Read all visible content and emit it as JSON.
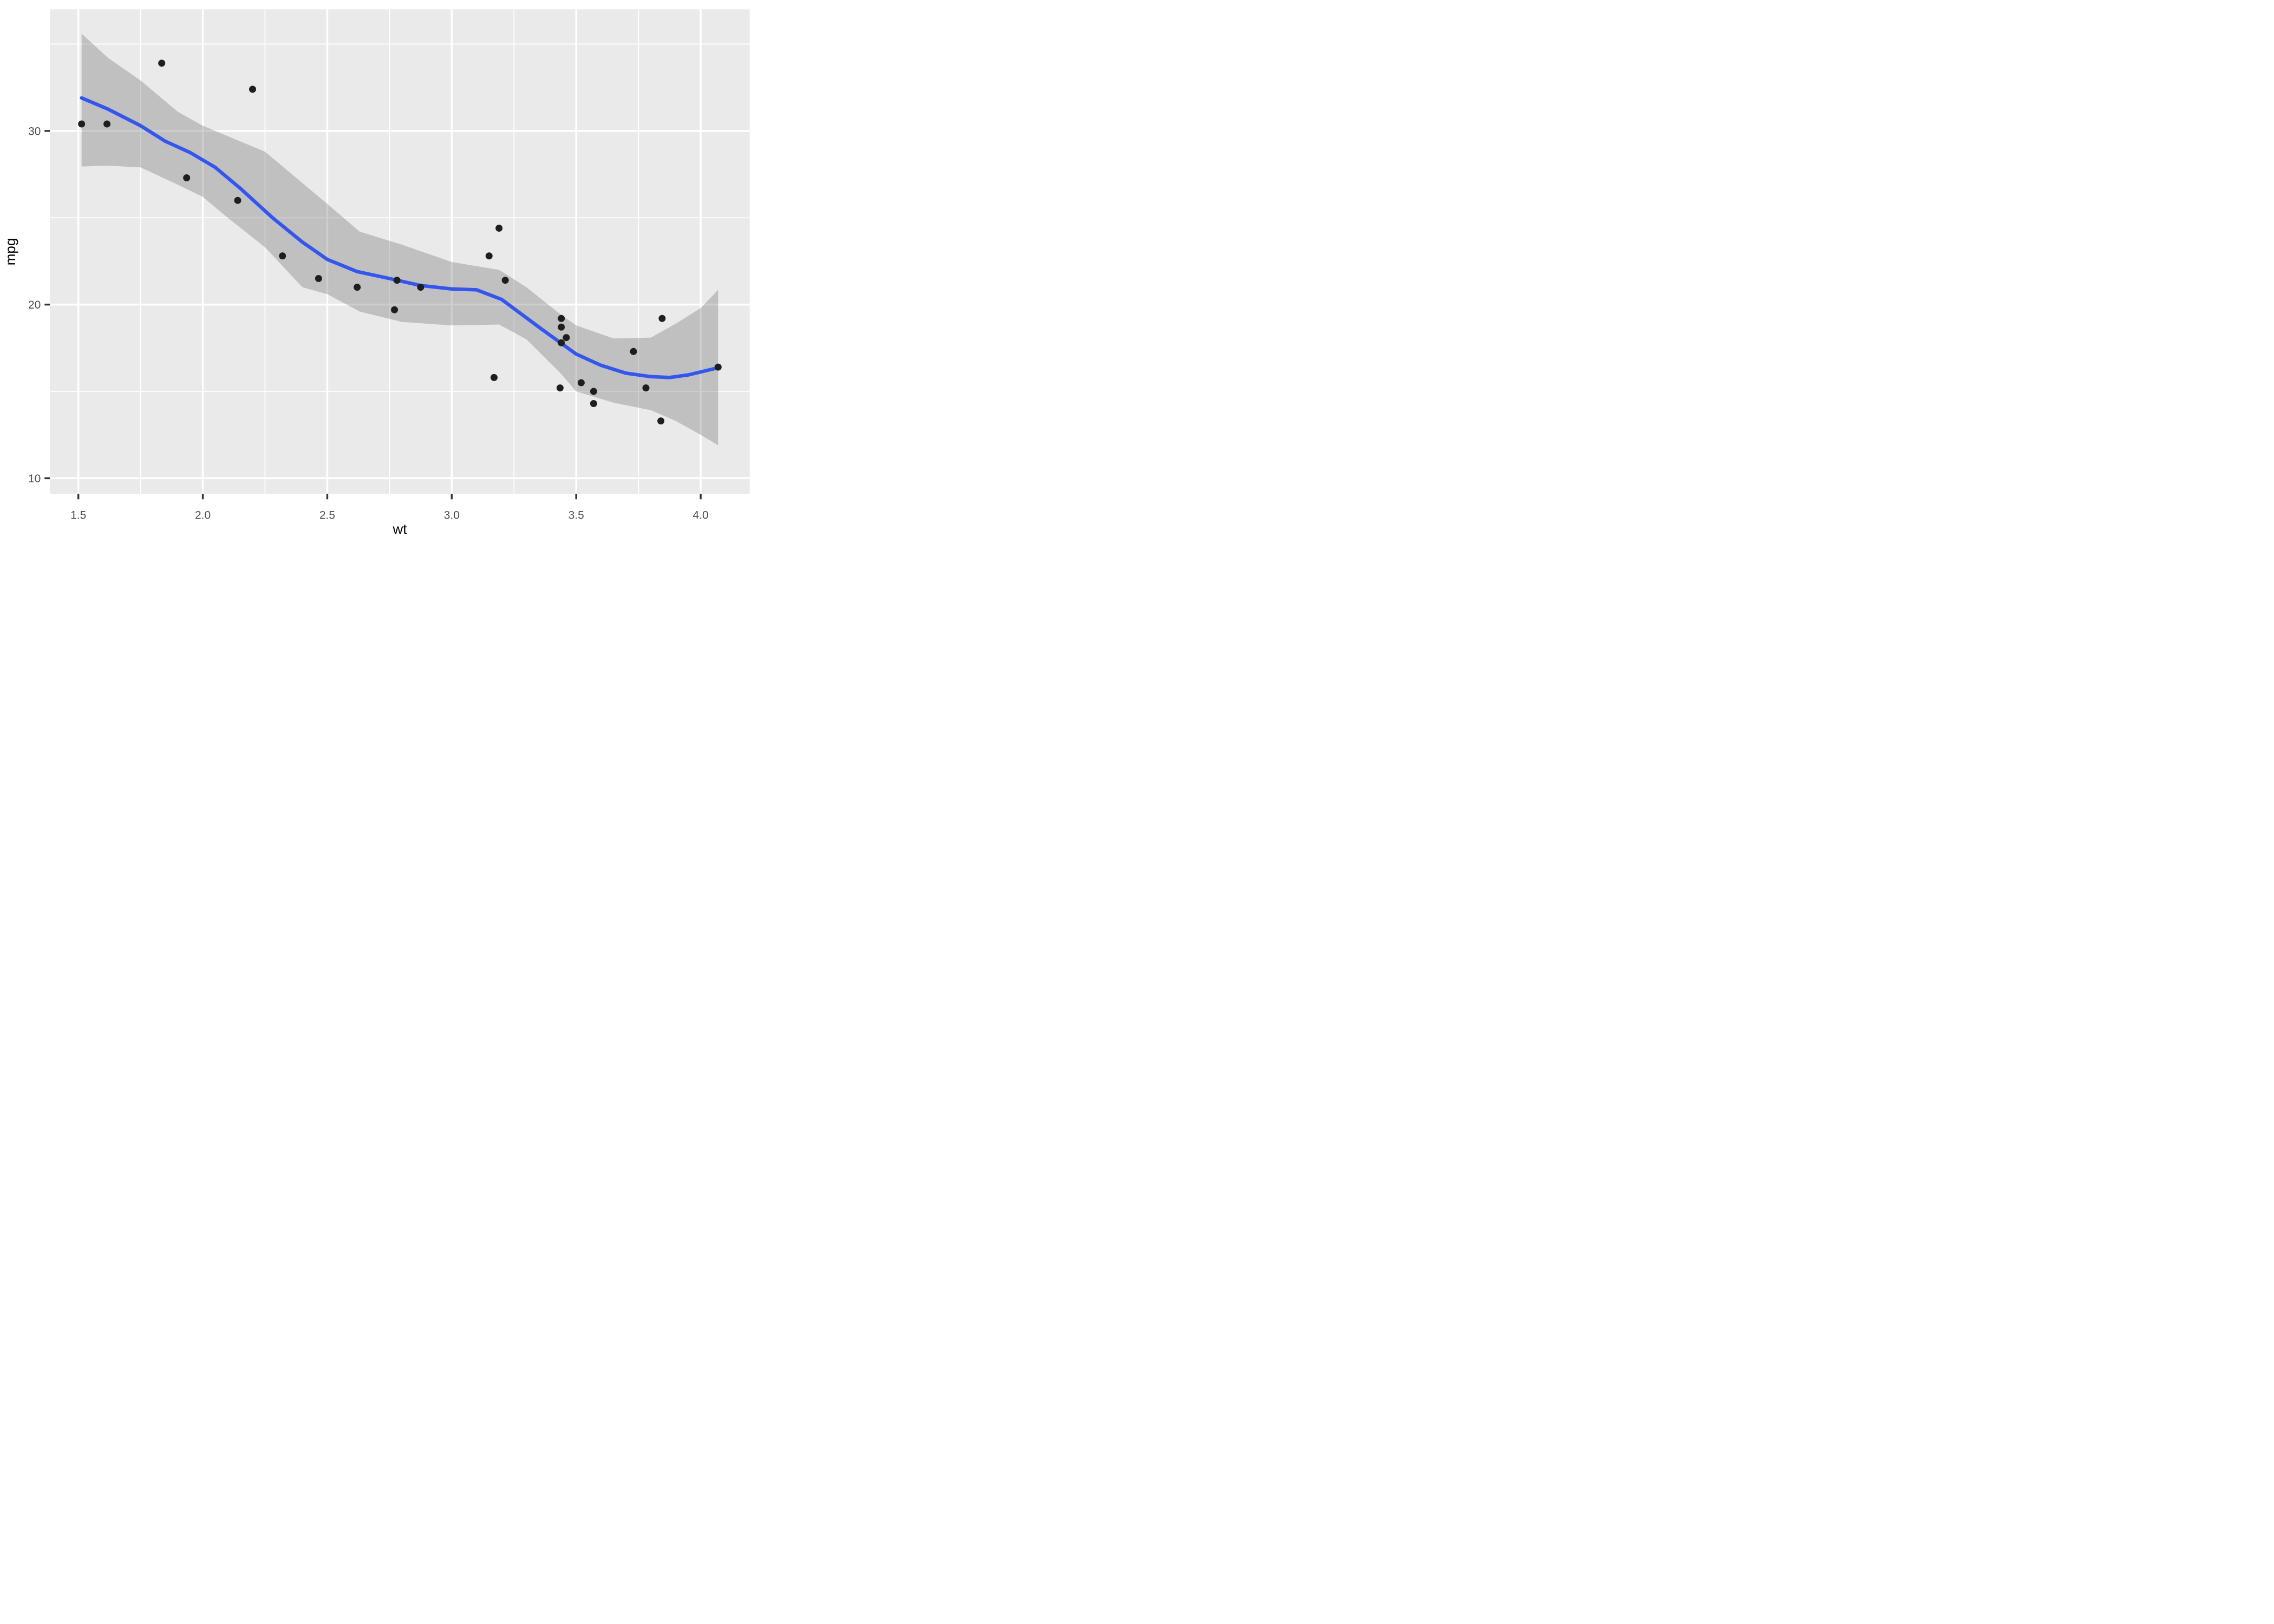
{
  "chart_data": {
    "type": "scatter",
    "title": "",
    "xlabel": "wt",
    "ylabel": "mpg",
    "xlim": [
      1.386,
      4.197
    ],
    "ylim": [
      9.1,
      37.0
    ],
    "grid": true,
    "legend": "none",
    "x_major_ticks": [
      1.5,
      2.0,
      2.5,
      3.0,
      3.5,
      4.0
    ],
    "x_tick_labels": [
      "1.5",
      "2.0",
      "2.5",
      "3.0",
      "3.5",
      "4.0"
    ],
    "x_minor_ticks": [
      1.75,
      2.25,
      2.75,
      3.25,
      3.75
    ],
    "y_major_ticks": [
      10,
      20,
      30
    ],
    "y_tick_labels": [
      "10",
      "20",
      "30"
    ],
    "y_minor_ticks": [
      15,
      25,
      35
    ],
    "points": [
      [
        2.62,
        21.0
      ],
      [
        2.875,
        21.0
      ],
      [
        2.32,
        22.8
      ],
      [
        3.215,
        21.4
      ],
      [
        3.44,
        18.7
      ],
      [
        3.46,
        18.1
      ],
      [
        3.57,
        14.3
      ],
      [
        3.19,
        24.4
      ],
      [
        3.15,
        22.8
      ],
      [
        3.44,
        19.2
      ],
      [
        3.44,
        17.8
      ],
      [
        4.07,
        16.4
      ],
      [
        3.73,
        17.3
      ],
      [
        3.78,
        15.2
      ],
      [
        2.2,
        32.4
      ],
      [
        1.615,
        30.4
      ],
      [
        1.835,
        33.9
      ],
      [
        2.465,
        21.5
      ],
      [
        3.52,
        15.5
      ],
      [
        3.435,
        15.2
      ],
      [
        3.84,
        13.3
      ],
      [
        3.845,
        19.2
      ],
      [
        1.935,
        27.3
      ],
      [
        2.14,
        26.0
      ],
      [
        1.513,
        30.4
      ],
      [
        3.17,
        15.8
      ],
      [
        2.77,
        19.7
      ],
      [
        3.57,
        15.0
      ],
      [
        2.78,
        21.4
      ]
    ],
    "smooth_line": [
      [
        1.513,
        31.9
      ],
      [
        1.62,
        31.25
      ],
      [
        1.75,
        30.3
      ],
      [
        1.85,
        29.4
      ],
      [
        1.95,
        28.75
      ],
      [
        2.05,
        27.9
      ],
      [
        2.15,
        26.7
      ],
      [
        2.28,
        25.0
      ],
      [
        2.4,
        23.6
      ],
      [
        2.5,
        22.6
      ],
      [
        2.62,
        21.9
      ],
      [
        2.75,
        21.5
      ],
      [
        2.875,
        21.1
      ],
      [
        3.0,
        20.9
      ],
      [
        3.1,
        20.85
      ],
      [
        3.2,
        20.3
      ],
      [
        3.36,
        18.6
      ],
      [
        3.5,
        17.15
      ],
      [
        3.6,
        16.5
      ],
      [
        3.7,
        16.05
      ],
      [
        3.8,
        15.85
      ],
      [
        3.875,
        15.8
      ],
      [
        3.95,
        15.95
      ],
      [
        4.07,
        16.36
      ]
    ],
    "ribbon_upper": [
      [
        1.513,
        35.6
      ],
      [
        1.62,
        34.2
      ],
      [
        1.75,
        32.9
      ],
      [
        1.9,
        31.1
      ],
      [
        2.0,
        30.3
      ],
      [
        2.1,
        29.7
      ],
      [
        2.25,
        28.8
      ],
      [
        2.4,
        27.0
      ],
      [
        2.5,
        25.8
      ],
      [
        2.63,
        24.2
      ],
      [
        2.8,
        23.45
      ],
      [
        3.0,
        22.45
      ],
      [
        3.19,
        22.0
      ],
      [
        3.3,
        21.0
      ],
      [
        3.44,
        19.4
      ],
      [
        3.5,
        18.8
      ],
      [
        3.65,
        18.05
      ],
      [
        3.8,
        18.1
      ],
      [
        3.9,
        18.9
      ],
      [
        4.0,
        19.8
      ],
      [
        4.07,
        20.85
      ]
    ],
    "ribbon_lower": [
      [
        1.513,
        27.95
      ],
      [
        1.62,
        28.0
      ],
      [
        1.75,
        27.9
      ],
      [
        1.9,
        26.9
      ],
      [
        2.0,
        26.2
      ],
      [
        2.1,
        25.0
      ],
      [
        2.25,
        23.3
      ],
      [
        2.4,
        21.0
      ],
      [
        2.5,
        20.6
      ],
      [
        2.63,
        19.6
      ],
      [
        2.8,
        19.0
      ],
      [
        3.0,
        18.8
      ],
      [
        3.19,
        18.85
      ],
      [
        3.3,
        18.0
      ],
      [
        3.44,
        16.0
      ],
      [
        3.5,
        15.0
      ],
      [
        3.65,
        14.35
      ],
      [
        3.8,
        13.92
      ],
      [
        3.9,
        13.3
      ],
      [
        4.0,
        12.5
      ],
      [
        4.07,
        11.9
      ]
    ],
    "colors": {
      "panel_background": "#EAEAEA",
      "gridline": "#FFFFFF",
      "ribbon": "rgba(102,102,102,0.32)",
      "smooth_line": "#3357EE",
      "point": "#1E1E1E",
      "axis_text": "#4D4D4D",
      "axis_title": "#000000",
      "tick_mark": "#333333",
      "page_background": "#FFFFFF"
    }
  }
}
